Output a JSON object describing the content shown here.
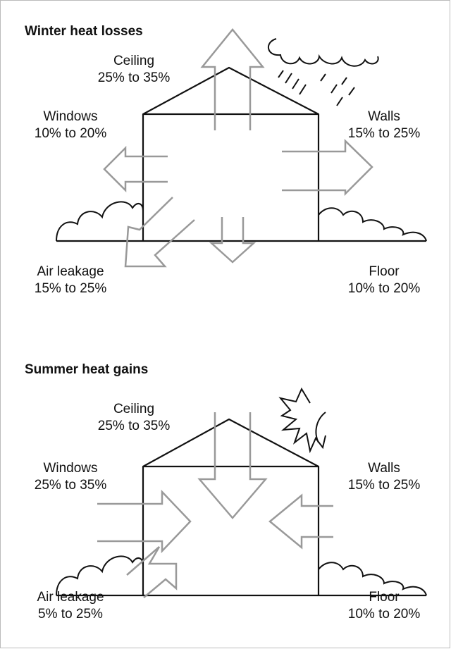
{
  "panels": [
    {
      "title": "Winter heat losses",
      "labels": [
        {
          "name": "Ceiling",
          "range": "25% to 35%"
        },
        {
          "name": "Windows",
          "range": "10% to 20%"
        },
        {
          "name": "Walls",
          "range": "15% to 25%"
        },
        {
          "name": "Air leakage",
          "range": "15% to 25%"
        },
        {
          "name": "Floor",
          "range": "10% to 20%"
        }
      ]
    },
    {
      "title": "Summer heat gains",
      "labels": [
        {
          "name": "Ceiling",
          "range": "25% to 35%"
        },
        {
          "name": "Windows",
          "range": "25% to 35%"
        },
        {
          "name": "Walls",
          "range": "15% to 25%"
        },
        {
          "name": "Air leakage",
          "range": "5% to 25%"
        },
        {
          "name": "Floor",
          "range": "10% to 20%"
        }
      ]
    }
  ]
}
